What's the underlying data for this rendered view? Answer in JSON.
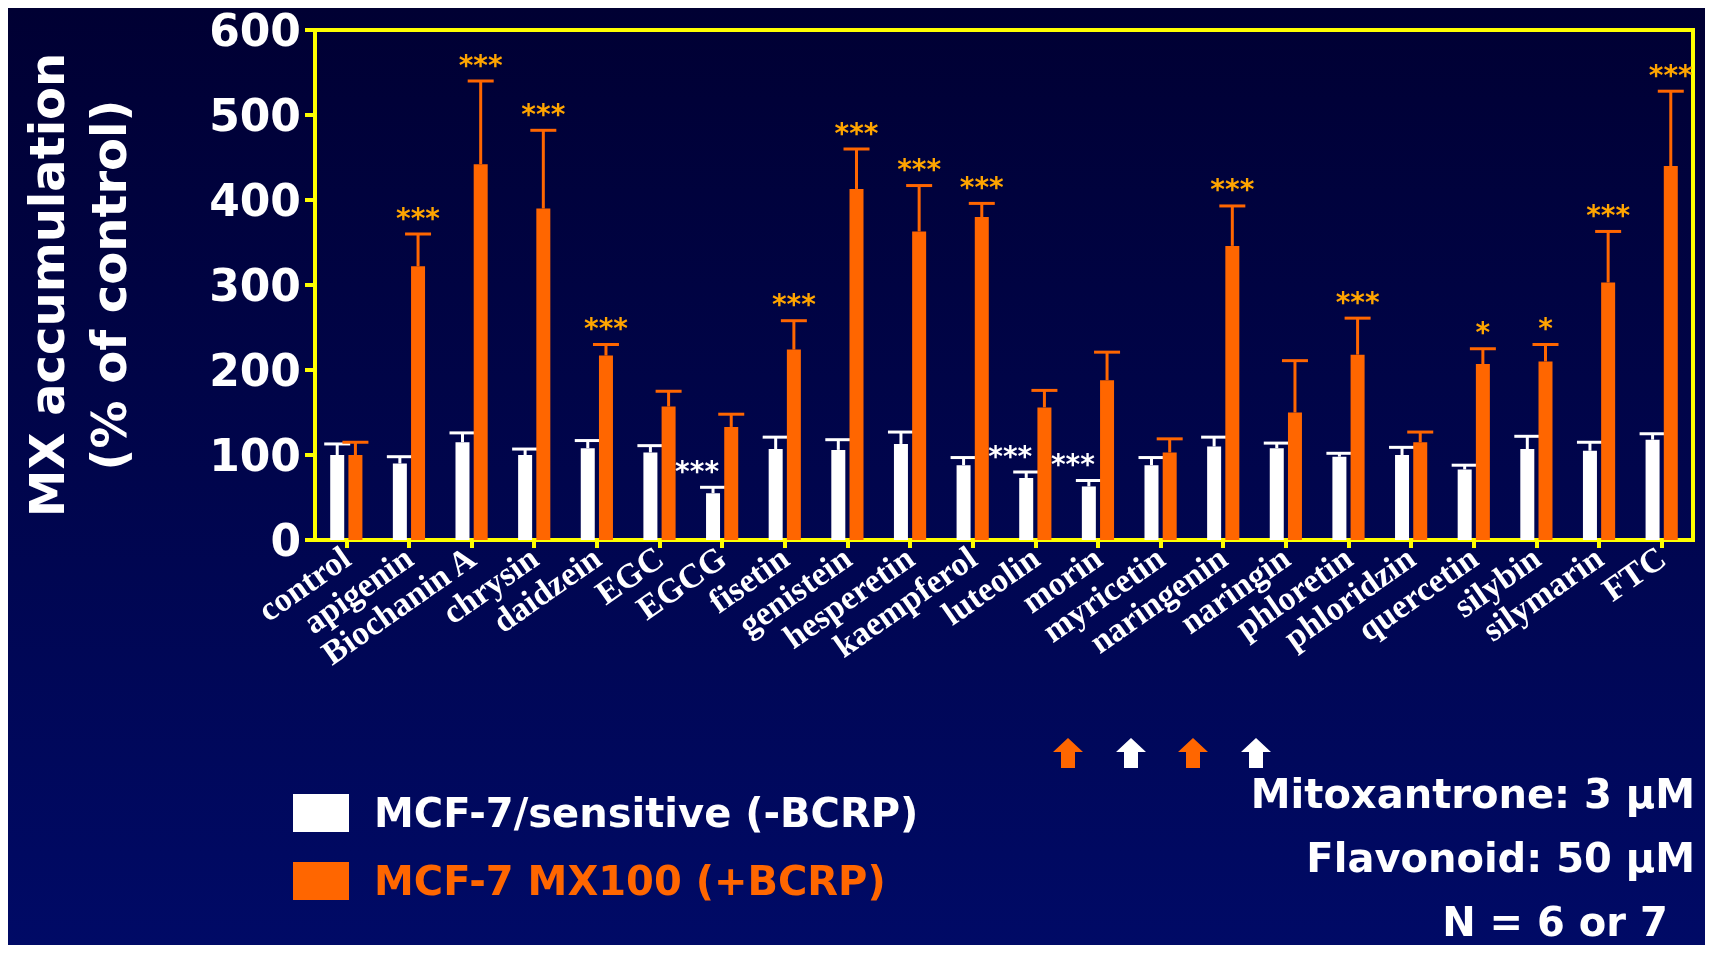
{
  "chart_data": {
    "type": "bar",
    "ylabel": "MX accumulation\n(% of control)",
    "categories": [
      "control",
      "apigenin",
      "Biochanin A",
      "chrysin",
      "daidzein",
      "EGC",
      "EGCG",
      "fisetin",
      "genistein",
      "hesperetin",
      "kaempferol",
      "luteolin",
      "morin",
      "myricetin",
      "naringenin",
      "naringin",
      "phloretin",
      "phloridzin",
      "quercetin",
      "silybin",
      "silymarin",
      "FTC"
    ],
    "series": [
      {
        "name": "MCF-7/sensitive (-BCRP)",
        "color": "#ffffff",
        "values": [
          100,
          90,
          115,
          100,
          108,
          103,
          55,
          107,
          106,
          113,
          88,
          73,
          63,
          88,
          110,
          108,
          98,
          100,
          83,
          107,
          105,
          118
        ],
        "errors": [
          [
            100,
            113
          ],
          [
            90,
            98
          ],
          [
            115,
            126
          ],
          [
            100,
            107
          ],
          [
            108,
            117
          ],
          [
            103,
            111
          ],
          [
            55,
            62
          ],
          [
            107,
            121
          ],
          [
            106,
            118
          ],
          [
            113,
            127
          ],
          [
            88,
            97
          ],
          [
            73,
            80
          ],
          [
            63,
            70
          ],
          [
            88,
            97
          ],
          [
            110,
            121
          ],
          [
            108,
            114
          ],
          [
            98,
            102
          ],
          [
            100,
            109
          ],
          [
            83,
            88
          ],
          [
            107,
            122
          ],
          [
            105,
            115
          ],
          [
            118,
            125
          ]
        ]
      },
      {
        "name": "MCF-7 MX100 (+BCRP)",
        "color": "#ff6600",
        "values": [
          100,
          322,
          442,
          390,
          217,
          157,
          133,
          224,
          413,
          363,
          380,
          156,
          188,
          103,
          346,
          150,
          218,
          115,
          207,
          210,
          303,
          440
        ],
        "errors": [
          [
            100,
            115
          ],
          [
            322,
            360
          ],
          [
            442,
            540
          ],
          [
            390,
            482
          ],
          [
            217,
            230
          ],
          [
            157,
            175
          ],
          [
            133,
            148
          ],
          [
            224,
            258
          ],
          [
            413,
            460
          ],
          [
            363,
            417
          ],
          [
            380,
            396
          ],
          [
            156,
            176
          ],
          [
            188,
            221
          ],
          [
            103,
            119
          ],
          [
            346,
            393
          ],
          [
            150,
            211
          ],
          [
            218,
            261
          ],
          [
            115,
            127
          ],
          [
            207,
            225
          ],
          [
            210,
            230
          ],
          [
            303,
            363
          ],
          [
            440,
            528
          ]
        ]
      }
    ],
    "ylim": [
      0,
      600
    ],
    "yticks": [
      0,
      100,
      200,
      300,
      400,
      500,
      600
    ],
    "grid": false,
    "legend": "bottom left",
    "annotations": [
      {
        "text": "***",
        "x": "apigenin",
        "y": 360
      },
      {
        "text": "***",
        "x": "Biochanin A",
        "y": 540
      },
      {
        "text": "***",
        "x": "chrysin",
        "y": 482
      },
      {
        "text": "***",
        "x": "daidzein",
        "y": 230
      },
      {
        "text": "***",
        "x": "EGCG",
        "y": 62
      },
      {
        "text": "***",
        "x": "fisetin",
        "y": 258
      },
      {
        "text": "***",
        "x": "genistein",
        "y": 460
      },
      {
        "text": "***",
        "x": "hesperetin",
        "y": 417
      },
      {
        "text": "***",
        "x": "kaempferol",
        "y": 396
      },
      {
        "text": "***",
        "x": "luteolin",
        "y": 80
      },
      {
        "text": "***",
        "x": "morin",
        "y": 70
      },
      {
        "text": "***",
        "x": "naringenin",
        "y": 393
      },
      {
        "text": "***",
        "x": "phloretin",
        "y": 261
      },
      {
        "text": "*",
        "x": "quercetin",
        "y": 225
      },
      {
        "text": "*",
        "x": "silybin",
        "y": 230
      },
      {
        "text": "***",
        "x": "silymarin",
        "y": 363
      },
      {
        "text": "***",
        "x": "FTC",
        "y": 528
      },
      "Mitoxantrone: 3 μM",
      "Flavonoid: 50 μM",
      "N = 6 or 7"
    ]
  }
}
